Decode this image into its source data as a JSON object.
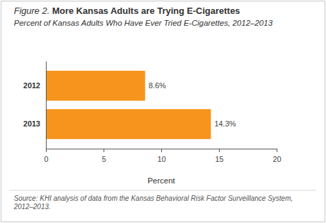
{
  "chart_data": {
    "type": "bar",
    "orientation": "horizontal",
    "title": "Figure 2. More Kansas Adults are Trying E-Cigarettes",
    "subtitle": "Percent of Kansas Adults Who Have Ever Tried E-Cigarettes, 2012–2013",
    "categories": [
      "2012",
      "2013"
    ],
    "values": [
      8.6,
      14.3
    ],
    "value_labels": [
      "8.6%",
      "14.3%"
    ],
    "data_labels": true,
    "color": "#f7941d",
    "xlabel": "Percent",
    "xlim": [
      0,
      20
    ],
    "xticks": [
      0,
      5,
      10,
      15,
      20
    ],
    "annotations": [
      "Source: KHI analysis of data from the Kansas Behavioral Risk Factor Surveillance System, 2012–2013."
    ]
  }
}
